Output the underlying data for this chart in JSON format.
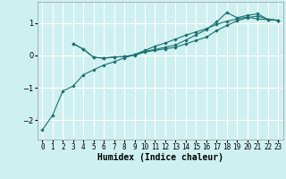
{
  "xlabel": "Humidex (Indice chaleur)",
  "bg_color": "#cff0f0",
  "grid_color": "#ffffff",
  "line_color": "#1a7070",
  "xlim": [
    -0.5,
    23.5
  ],
  "ylim": [
    -2.6,
    1.65
  ],
  "yticks": [
    -2,
    -1,
    0,
    1
  ],
  "xticks": [
    0,
    1,
    2,
    3,
    4,
    5,
    6,
    7,
    8,
    9,
    10,
    11,
    12,
    13,
    14,
    15,
    16,
    17,
    18,
    19,
    20,
    21,
    22,
    23
  ],
  "line1_x": [
    0,
    1,
    2,
    3,
    4,
    5,
    6,
    7,
    8,
    9,
    10,
    11,
    12,
    13,
    14,
    15,
    16,
    17,
    18,
    19,
    20,
    21,
    22,
    23
  ],
  "line1_y": [
    -2.3,
    -1.85,
    -1.1,
    -0.95,
    -0.6,
    -0.45,
    -0.3,
    -0.2,
    -0.08,
    0.02,
    0.15,
    0.28,
    0.38,
    0.5,
    0.62,
    0.72,
    0.82,
    0.95,
    1.05,
    1.12,
    1.18,
    1.12,
    1.1,
    1.08
  ],
  "line2_x": [
    3,
    4,
    5,
    6,
    7,
    8,
    9,
    10,
    11,
    12,
    13,
    14,
    15,
    16,
    17,
    18,
    19,
    20,
    21,
    22,
    23
  ],
  "line2_y": [
    0.36,
    0.19,
    -0.06,
    -0.09,
    -0.05,
    -0.04,
    0.0,
    0.1,
    0.15,
    0.2,
    0.25,
    0.35,
    0.46,
    0.56,
    0.76,
    0.92,
    1.06,
    1.16,
    1.21,
    1.11,
    1.08
  ],
  "line3_x": [
    3,
    4,
    5,
    6,
    7,
    8,
    9,
    10,
    11,
    12,
    13,
    14,
    15,
    16,
    17,
    18,
    19,
    20,
    21,
    22,
    23
  ],
  "line3_y": [
    0.36,
    0.19,
    -0.06,
    -0.09,
    -0.05,
    -0.04,
    0.02,
    0.12,
    0.18,
    0.25,
    0.32,
    0.47,
    0.63,
    0.79,
    1.03,
    1.32,
    1.16,
    1.23,
    1.28,
    1.11,
    1.08
  ],
  "tick_fontsize": 5.5,
  "xlabel_fontsize": 7,
  "marker_size": 2.2,
  "linewidth": 0.8
}
